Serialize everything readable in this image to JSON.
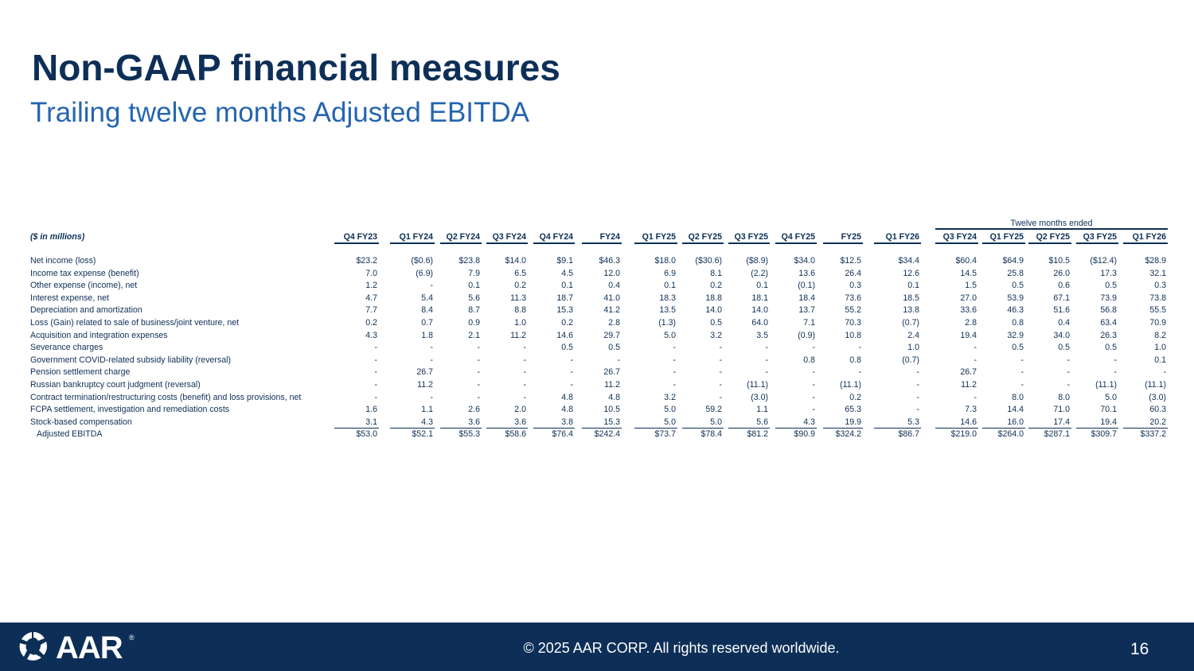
{
  "title": "Non-GAAP financial measures",
  "subtitle": "Trailing twelve months Adjusted EBITDA",
  "table": {
    "units": "($ in millions)",
    "group_label": "Twelve months ended",
    "columns": [
      "Q4 FY23",
      "Q1 FY24",
      "Q2 FY24",
      "Q3 FY24",
      "Q4 FY24",
      "FY24",
      "Q1 FY25",
      "Q2 FY25",
      "Q3 FY25",
      "Q4 FY25",
      "FY25",
      "Q1 FY26",
      "Q3 FY24",
      "Q1 FY25",
      "Q2 FY25",
      "Q3 FY25",
      "Q1 FY26"
    ],
    "rows": [
      {
        "label": "Net income (loss)",
        "values": [
          "$23.2",
          "($0.6)",
          "$23.8",
          "$14.0",
          "$9.1",
          "$46.3",
          "$18.0",
          "($30.6)",
          "($8.9)",
          "$34.0",
          "$12.5",
          "$34.4",
          "$60.4",
          "$64.9",
          "$10.5",
          "($12.4)",
          "$28.9"
        ]
      },
      {
        "label": "Income tax expense (benefit)",
        "values": [
          "7.0",
          "(6.9)",
          "7.9",
          "6.5",
          "4.5",
          "12.0",
          "6.9",
          "8.1",
          "(2.2)",
          "13.6",
          "26.4",
          "12.6",
          "14.5",
          "25.8",
          "26.0",
          "17.3",
          "32.1"
        ]
      },
      {
        "label": "Other expense (income), net",
        "values": [
          "1.2",
          "-",
          "0.1",
          "0.2",
          "0.1",
          "0.4",
          "0.1",
          "0.2",
          "0.1",
          "(0.1)",
          "0.3",
          "0.1",
          "1.5",
          "0.5",
          "0.6",
          "0.5",
          "0.3"
        ]
      },
      {
        "label": "Interest expense, net",
        "values": [
          "4.7",
          "5.4",
          "5.6",
          "11.3",
          "18.7",
          "41.0",
          "18.3",
          "18.8",
          "18.1",
          "18.4",
          "73.6",
          "18.5",
          "27.0",
          "53.9",
          "67.1",
          "73.9",
          "73.8"
        ]
      },
      {
        "label": "Depreciation and amortization",
        "values": [
          "7.7",
          "8.4",
          "8.7",
          "8.8",
          "15.3",
          "41.2",
          "13.5",
          "14.0",
          "14.0",
          "13.7",
          "55.2",
          "13.8",
          "33.6",
          "46.3",
          "51.6",
          "56.8",
          "55.5"
        ]
      },
      {
        "label": "Loss (Gain) related to sale of business/joint venture, net",
        "values": [
          "0.2",
          "0.7",
          "0.9",
          "1.0",
          "0.2",
          "2.8",
          "(1.3)",
          "0.5",
          "64.0",
          "7.1",
          "70.3",
          "(0.7)",
          "2.8",
          "0.8",
          "0.4",
          "63.4",
          "70.9"
        ]
      },
      {
        "label": "Acquisition and integration expenses",
        "values": [
          "4.3",
          "1.8",
          "2.1",
          "11.2",
          "14.6",
          "29.7",
          "5.0",
          "3.2",
          "3.5",
          "(0.9)",
          "10.8",
          "2.4",
          "19.4",
          "32.9",
          "34.0",
          "26.3",
          "8.2"
        ]
      },
      {
        "label": "Severance charges",
        "values": [
          "-",
          "-",
          "-",
          "-",
          "0.5",
          "0.5",
          "-",
          "-",
          "-",
          "-",
          "-",
          "1.0",
          "-",
          "0.5",
          "0.5",
          "0.5",
          "1.0"
        ]
      },
      {
        "label": "Government COVID-related subsidy liability (reversal)",
        "values": [
          "-",
          "-",
          "-",
          "-",
          "-",
          "-",
          "-",
          "-",
          "-",
          "0.8",
          "0.8",
          "(0.7)",
          "-",
          "-",
          "-",
          "-",
          "0.1"
        ]
      },
      {
        "label": "Pension settlement charge",
        "values": [
          "-",
          "26.7",
          "-",
          "-",
          "-",
          "26.7",
          "-",
          "-",
          "-",
          "-",
          "-",
          "-",
          "26.7",
          "-",
          "-",
          "-",
          "-"
        ]
      },
      {
        "label": "Russian bankruptcy court judgment (reversal)",
        "values": [
          "-",
          "11.2",
          "-",
          "-",
          "-",
          "11.2",
          "-",
          "-",
          "(11.1)",
          "-",
          "(11.1)",
          "-",
          "11.2",
          "-",
          "-",
          "(11.1)",
          "(11.1)"
        ]
      },
      {
        "label": "Contract termination/restructuring costs (benefit) and loss provisions, net",
        "values": [
          "-",
          "-",
          "-",
          "-",
          "4.8",
          "4.8",
          "3.2",
          "-",
          "(3.0)",
          "-",
          "0.2",
          "-",
          "-",
          "8.0",
          "8.0",
          "5.0",
          "(3.0)"
        ]
      },
      {
        "label": "FCPA settlement, investigation and remediation costs",
        "values": [
          "1.6",
          "1.1",
          "2.6",
          "2.0",
          "4.8",
          "10.5",
          "5.0",
          "59.2",
          "1.1",
          "-",
          "65.3",
          "-",
          "7.3",
          "14.4",
          "71.0",
          "70.1",
          "60.3"
        ]
      },
      {
        "label": "Stock-based compensation",
        "values": [
          "3.1",
          "4.3",
          "3.6",
          "3.6",
          "3.8",
          "15.3",
          "5.0",
          "5.0",
          "5.6",
          "4.3",
          "19.9",
          "5.3",
          "14.6",
          "16.0",
          "17.4",
          "19.4",
          "20.2"
        ]
      },
      {
        "label": "Adjusted EBITDA",
        "values": [
          "$53.0",
          "$52.1",
          "$55.3",
          "$58.6",
          "$76.4",
          "$242.4",
          "$73.7",
          "$78.4",
          "$81.2",
          "$90.9",
          "$324.2",
          "$86.7",
          "$219.0",
          "$264.0",
          "$287.1",
          "$309.7",
          "$337.2"
        ]
      }
    ]
  },
  "footer": {
    "logo_text": "AAR",
    "registered": "®",
    "copyright": "© 2025 AAR CORP. All rights reserved worldwide.",
    "page_number": "16"
  },
  "colors": {
    "navy": "#0d2f57",
    "accent_blue": "#2565b0"
  }
}
